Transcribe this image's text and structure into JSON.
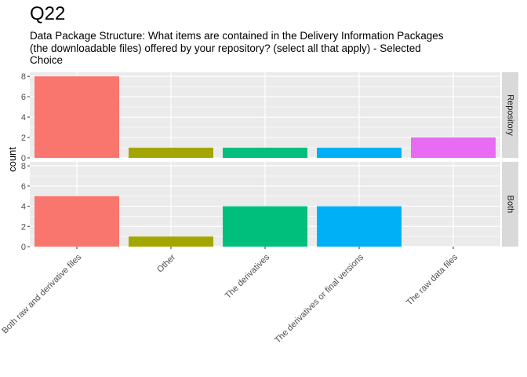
{
  "chart_data": {
    "type": "bar",
    "title": "Q22",
    "subtitle": "Data Package Structure: What items are contained in the Delivery Information Packages (the downloadable files) offered by your repository? (select all that apply) - Selected Choice",
    "xlabel": "",
    "ylabel": "count",
    "categories": [
      "Both raw and derivative files",
      "Other",
      "The derivatives",
      "The derivatives or final versions",
      "The raw data files"
    ],
    "colors": [
      "#F8766D",
      "#A3A500",
      "#00BF7D",
      "#00B0F6",
      "#E76BF3"
    ],
    "ylim": [
      0,
      8.4
    ],
    "yticks": [
      0,
      2,
      4,
      6,
      8
    ],
    "grid": true,
    "legend": "none",
    "facets": [
      {
        "name": "Repository",
        "values": [
          8,
          1,
          1,
          1,
          2
        ]
      },
      {
        "name": "Both",
        "values": [
          5,
          1,
          4,
          4,
          0
        ]
      }
    ]
  }
}
